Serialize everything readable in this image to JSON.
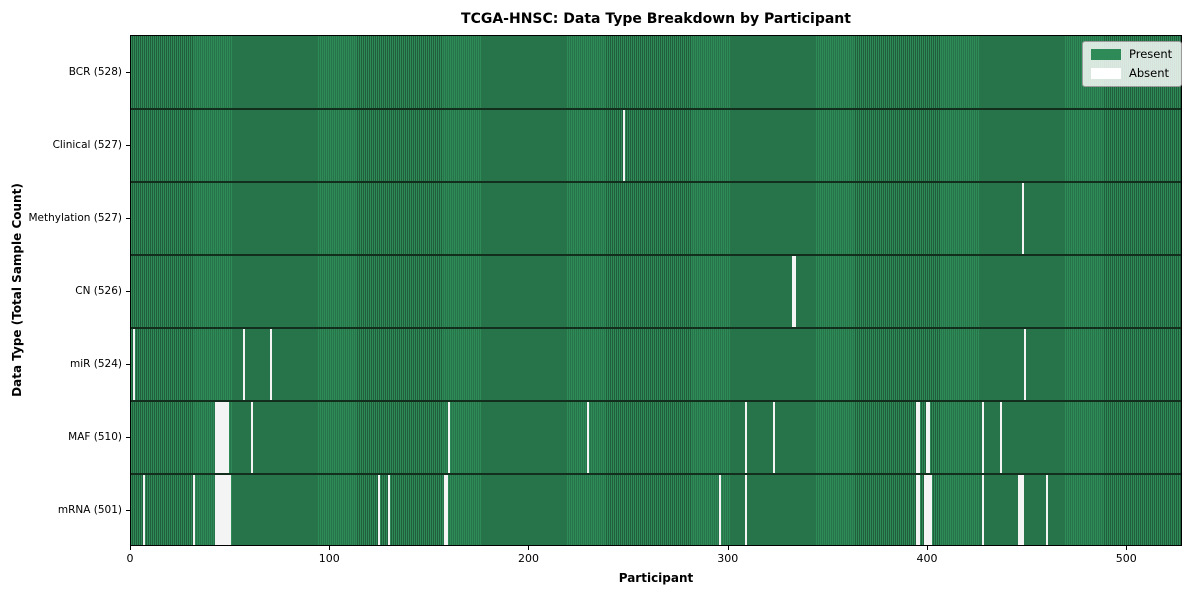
{
  "chart_data": {
    "type": "heatmap",
    "title": "TCGA-HNSC: Data Type Breakdown by Participant",
    "xlabel": "Participant",
    "ylabel": "Data Type (Total Sample Count)",
    "x_ticks": [
      0,
      100,
      200,
      300,
      400,
      500
    ],
    "x_range": [
      0,
      528
    ],
    "total_participants": 528,
    "grid": false,
    "legend": {
      "position": "upper-right",
      "entries": [
        {
          "label": "Present",
          "color": "#2e8b57"
        },
        {
          "label": "Absent",
          "color": "#ffffff"
        }
      ]
    },
    "rows": [
      {
        "label": "BCR (528)",
        "data_type": "BCR",
        "present_count": 528,
        "absent_participants": []
      },
      {
        "label": "Clinical (527)",
        "data_type": "Clinical",
        "present_count": 527,
        "absent_participants": [
          247
        ]
      },
      {
        "label": "Methylation (527)",
        "data_type": "Methylation",
        "present_count": 527,
        "absent_participants": [
          447
        ]
      },
      {
        "label": "CN (526)",
        "data_type": "CN",
        "present_count": 526,
        "absent_participants": [
          332,
          333
        ]
      },
      {
        "label": "miR (524)",
        "data_type": "miR",
        "present_count": 524,
        "absent_participants": [
          1,
          56,
          70,
          448
        ]
      },
      {
        "label": "MAF (510)",
        "data_type": "MAF",
        "present_count": 510,
        "absent_participants": [
          42,
          43,
          44,
          45,
          46,
          47,
          48,
          60,
          159,
          229,
          308,
          322,
          394,
          395,
          399,
          400,
          427,
          436
        ]
      },
      {
        "label": "mRNA (501)",
        "data_type": "mRNA",
        "present_count": 501,
        "absent_participants": [
          6,
          31,
          42,
          43,
          44,
          45,
          46,
          47,
          48,
          49,
          124,
          129,
          157,
          158,
          295,
          308,
          394,
          395,
          398,
          399,
          400,
          401,
          427,
          445,
          446,
          447,
          459
        ]
      }
    ],
    "colors": {
      "present": "#2e8b57",
      "present_edge": "#215e3c",
      "absent_stripe": "#f4f4f4",
      "row_divider": "#142e1e",
      "axis": "#000000"
    }
  }
}
